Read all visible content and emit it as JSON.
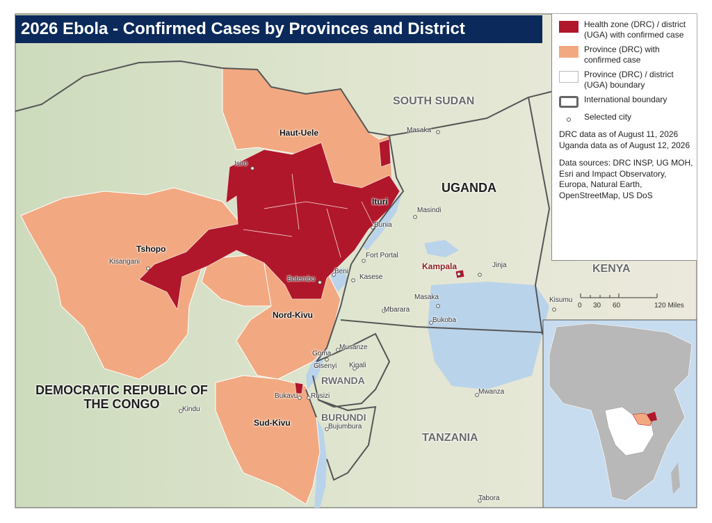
{
  "title": "2026 Ebola - Confirmed Cases by Provinces and District",
  "legend": [
    {
      "label": "Health zone (DRC) / district (UGA) with confirmed case"
    },
    {
      "label": "Province (DRC) with confirmed case"
    },
    {
      "label": "Province (DRC) / district (UGA) boundary"
    },
    {
      "label": "International boundary"
    },
    {
      "label": "Selected city"
    }
  ],
  "data_dates": "DRC data as of August 11, 2026 Uganda data as of August 12, 2026",
  "data_sources": "Data sources: DRC INSP, UG MOH, Esri and Impact Observatory, Europa, Natural Earth, OpenStreetMap, US DoS",
  "scale_bar": [
    "0",
    "30",
    "60",
    "120 Miles"
  ],
  "countries": [
    "SOUTH SUDAN",
    "UGANDA",
    "KENYA",
    "DEMOCRATIC REPUBLIC OF THE CONGO",
    "RWANDA",
    "BURUNDI",
    "TANZANIA"
  ],
  "provinces": [
    "Haut-Uele",
    "Ituri",
    "Tshopo",
    "Nord-Kivu",
    "Sud-Kivu"
  ],
  "cities": [
    "Masaka",
    "Isiro",
    "Bunia",
    "Masindi",
    "Kisangani",
    "Fort Portal",
    "Kampala",
    "Jinja",
    "Butembo",
    "Beni",
    "Kasese",
    "Masaka",
    "Kisumu",
    "Mbarara",
    "Goma",
    "Gisenyi",
    "Musanze",
    "Kigali",
    "Bukoba",
    "Bukavu",
    "Rusizi",
    "Mwanza",
    "Kindu",
    "Bujumbura",
    "Tabora"
  ]
}
